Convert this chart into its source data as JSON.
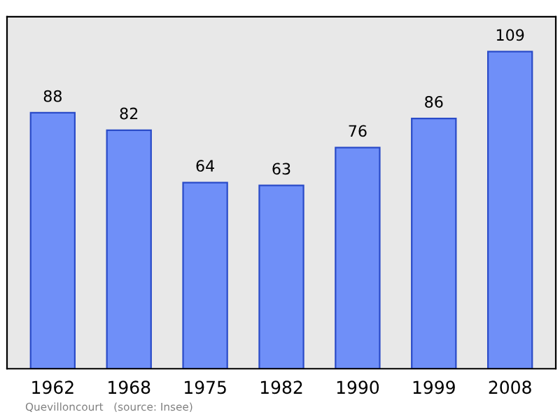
{
  "chart_data": {
    "type": "bar",
    "categories": [
      "1962",
      "1968",
      "1975",
      "1982",
      "1990",
      "1999",
      "2008"
    ],
    "values": [
      88,
      82,
      64,
      63,
      76,
      86,
      109
    ],
    "color": "#6f8ff8",
    "data_labels": true,
    "annotations": [
      "Quevilloncourt   (source: Insee)"
    ]
  }
}
